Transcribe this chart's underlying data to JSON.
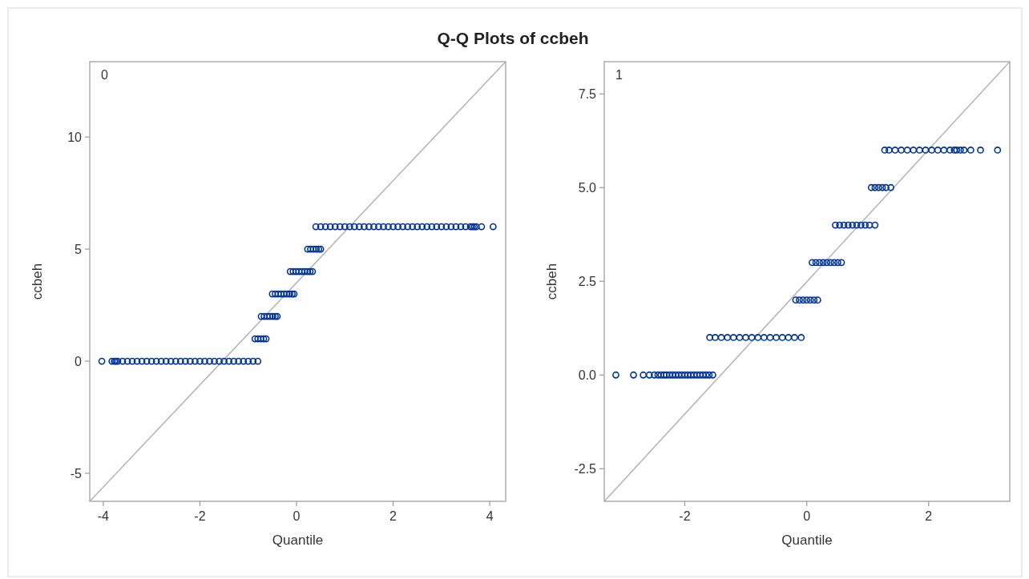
{
  "chart_data": [
    {
      "type": "scatter",
      "title": "Q-Q Plots of ccbeh",
      "xlabel": "Quantile",
      "ylabel": "ccbeh",
      "annotations": [
        "0"
      ],
      "marker": "circle",
      "xlim": [
        -4.28,
        4.33
      ],
      "ylim": [
        -6.25,
        13.36
      ],
      "xticks": [
        -4,
        -2,
        0,
        2,
        4
      ],
      "yticks": [
        -5,
        0,
        5,
        10
      ],
      "series": [
        {
          "type": "line",
          "marker": "none",
          "color": "#b3b3b3",
          "x": [
            -4.28,
            4.33
          ],
          "values": [
            -6.25,
            13.36
          ]
        },
        {
          "color": "#003399",
          "x": [
            -4.03,
            -3.82,
            -3.77,
            -3.74,
            -3.7,
            -3.6,
            -3.5,
            -3.4,
            -3.3,
            -3.2,
            -3.1,
            -3.0,
            -2.9,
            -2.8,
            -2.7,
            -2.6,
            -2.5,
            -2.4,
            -2.3,
            -2.2,
            -2.1,
            -2.0,
            -1.9,
            -1.8,
            -1.7,
            -1.6,
            -1.5,
            -1.4,
            -1.3,
            -1.2,
            -1.1,
            -1.0,
            -0.9,
            -0.8
          ],
          "values": [
            0,
            0,
            0,
            0,
            0,
            0,
            0,
            0,
            0,
            0,
            0,
            0,
            0,
            0,
            0,
            0,
            0,
            0,
            0,
            0,
            0,
            0,
            0,
            0,
            0,
            0,
            0,
            0,
            0,
            0,
            0,
            0,
            0,
            0
          ]
        },
        {
          "color": "#003399",
          "x": [
            -0.86,
            -0.8,
            -0.74,
            -0.68,
            -0.63
          ],
          "values": [
            1,
            1,
            1,
            1,
            1
          ]
        },
        {
          "color": "#003399",
          "x": [
            -0.73,
            -0.67,
            -0.61,
            -0.55,
            -0.49,
            -0.44,
            -0.4
          ],
          "values": [
            2,
            2,
            2,
            2,
            2,
            2,
            2
          ]
        },
        {
          "color": "#003399",
          "x": [
            -0.5,
            -0.44,
            -0.38,
            -0.32,
            -0.26,
            -0.2,
            -0.14,
            -0.09,
            -0.05
          ],
          "values": [
            3,
            3,
            3,
            3,
            3,
            3,
            3,
            3,
            3
          ]
        },
        {
          "color": "#003399",
          "x": [
            -0.13,
            -0.07,
            -0.01,
            0.05,
            0.11,
            0.17,
            0.23,
            0.28,
            0.33
          ],
          "values": [
            4,
            4,
            4,
            4,
            4,
            4,
            4,
            4,
            4
          ]
        },
        {
          "color": "#003399",
          "x": [
            0.23,
            0.29,
            0.35,
            0.41,
            0.46,
            0.5
          ],
          "values": [
            5,
            5,
            5,
            5,
            5,
            5
          ]
        },
        {
          "color": "#003399",
          "x": [
            0.4,
            0.5,
            0.6,
            0.7,
            0.8,
            0.9,
            1.0,
            1.1,
            1.2,
            1.3,
            1.4,
            1.5,
            1.6,
            1.7,
            1.8,
            1.9,
            2.0,
            2.1,
            2.2,
            2.3,
            2.4,
            2.5,
            2.6,
            2.7,
            2.8,
            2.9,
            3.0,
            3.1,
            3.2,
            3.3,
            3.4,
            3.5,
            3.6,
            3.64,
            3.68,
            3.72,
            3.83,
            4.07
          ],
          "values": [
            6,
            6,
            6,
            6,
            6,
            6,
            6,
            6,
            6,
            6,
            6,
            6,
            6,
            6,
            6,
            6,
            6,
            6,
            6,
            6,
            6,
            6,
            6,
            6,
            6,
            6,
            6,
            6,
            6,
            6,
            6,
            6,
            6,
            6,
            6,
            6,
            6,
            6
          ]
        }
      ]
    },
    {
      "type": "scatter",
      "xlabel": "Quantile",
      "ylabel": "ccbeh",
      "annotations": [
        "1"
      ],
      "marker": "circle",
      "xlim": [
        -3.32,
        3.33
      ],
      "ylim": [
        -3.37,
        8.36
      ],
      "xticks": [
        -2,
        0,
        2
      ],
      "yticks": [
        {
          "value": -2.5,
          "label": "-2.5"
        },
        {
          "value": 0,
          "label": "0.0"
        },
        {
          "value": 2.5,
          "label": "2.5"
        },
        {
          "value": 5,
          "label": "5.0"
        },
        {
          "value": 7.5,
          "label": "7.5"
        }
      ],
      "series": [
        {
          "type": "line",
          "marker": "none",
          "color": "#b3b3b3",
          "x": [
            -3.32,
            3.33
          ],
          "values": [
            -3.37,
            8.36
          ]
        },
        {
          "color": "#003399",
          "x": [
            -3.13,
            -2.84,
            -2.68,
            -2.58,
            -2.5,
            -2.44,
            -2.39,
            -2.34,
            -2.3,
            -2.25,
            -2.2,
            -2.15,
            -2.1,
            -2.05,
            -2.0,
            -1.95,
            -1.9,
            -1.85,
            -1.8,
            -1.75,
            -1.7,
            -1.65,
            -1.6,
            -1.54
          ],
          "values": [
            0,
            0,
            0,
            0,
            0,
            0,
            0,
            0,
            0,
            0,
            0,
            0,
            0,
            0,
            0,
            0,
            0,
            0,
            0,
            0,
            0,
            0,
            0,
            0
          ]
        },
        {
          "color": "#003399",
          "x": [
            -1.59,
            -1.5,
            -1.4,
            -1.3,
            -1.2,
            -1.1,
            -1.0,
            -0.9,
            -0.8,
            -0.7,
            -0.6,
            -0.5,
            -0.4,
            -0.3,
            -0.2,
            -0.09
          ],
          "values": [
            1,
            1,
            1,
            1,
            1,
            1,
            1,
            1,
            1,
            1,
            1,
            1,
            1,
            1,
            1,
            1
          ]
        },
        {
          "color": "#003399",
          "x": [
            -0.18,
            -0.12,
            -0.06,
            0,
            0.06,
            0.12,
            0.18
          ],
          "values": [
            2,
            2,
            2,
            2,
            2,
            2,
            2
          ]
        },
        {
          "color": "#003399",
          "x": [
            0.09,
            0.15,
            0.21,
            0.27,
            0.33,
            0.39,
            0.45,
            0.51,
            0.57
          ],
          "values": [
            3,
            3,
            3,
            3,
            3,
            3,
            3,
            3,
            3
          ]
        },
        {
          "color": "#003399",
          "x": [
            0.47,
            0.54,
            0.61,
            0.68,
            0.75,
            0.82,
            0.89,
            0.96,
            1.03,
            1.12
          ],
          "values": [
            4,
            4,
            4,
            4,
            4,
            4,
            4,
            4,
            4,
            4
          ]
        },
        {
          "color": "#003399",
          "x": [
            1.06,
            1.12,
            1.18,
            1.24,
            1.3,
            1.38
          ],
          "values": [
            5,
            5,
            5,
            5,
            5,
            5
          ]
        },
        {
          "color": "#003399",
          "x": [
            1.28,
            1.35,
            1.45,
            1.55,
            1.65,
            1.75,
            1.85,
            1.95,
            2.05,
            2.15,
            2.25,
            2.35,
            2.42,
            2.46,
            2.52,
            2.58,
            2.69,
            2.85,
            3.13
          ],
          "values": [
            6,
            6,
            6,
            6,
            6,
            6,
            6,
            6,
            6,
            6,
            6,
            6,
            6,
            6,
            6,
            6,
            6,
            6,
            6
          ]
        }
      ]
    }
  ]
}
